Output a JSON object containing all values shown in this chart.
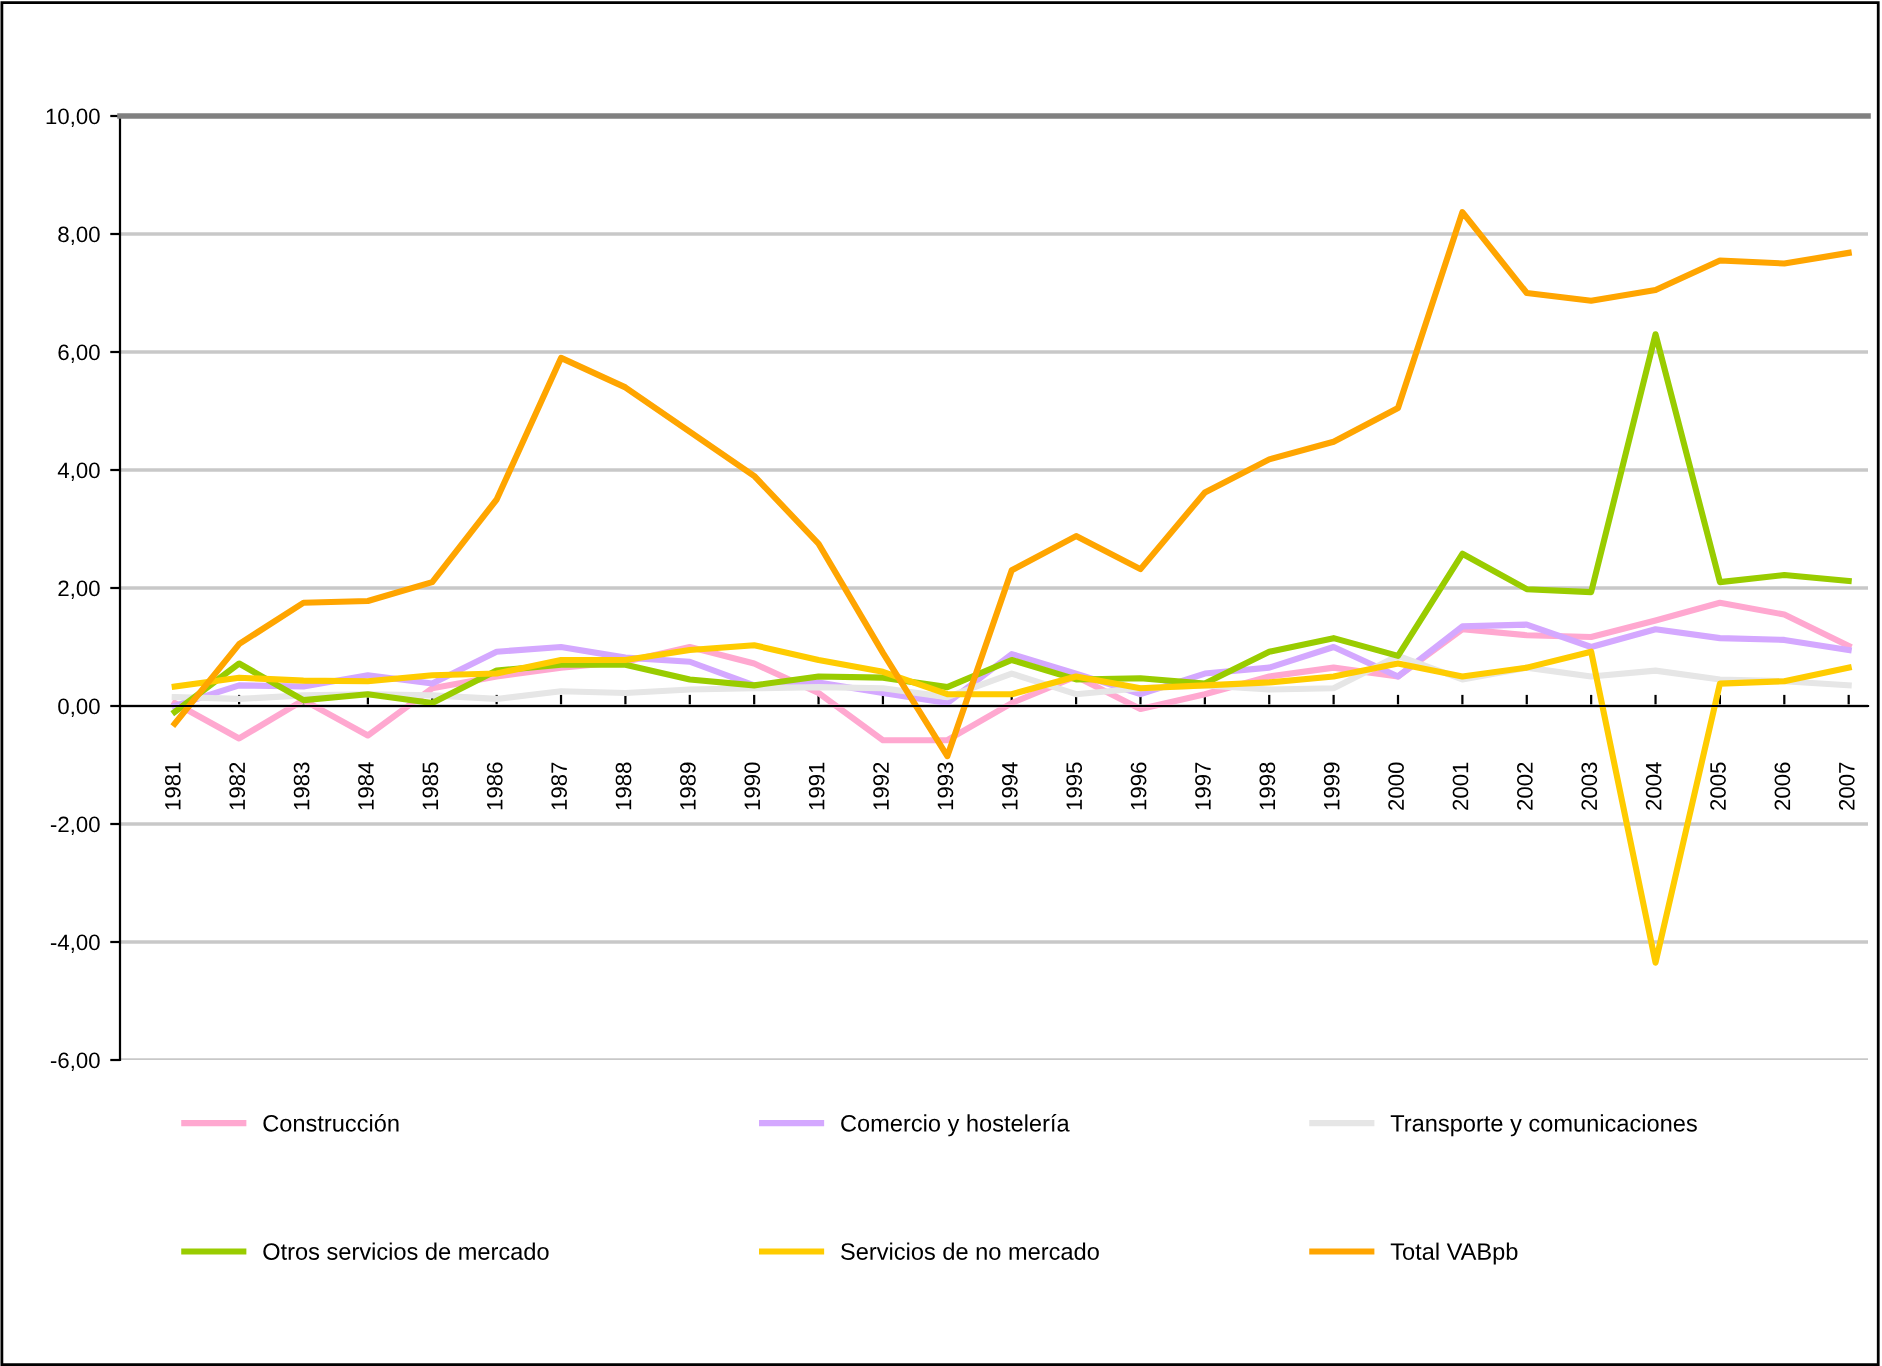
{
  "chart_data": {
    "type": "line",
    "categories": [
      "1981",
      "1982",
      "1983",
      "1984",
      "1985",
      "1986",
      "1987",
      "1988",
      "1989",
      "1990",
      "1991",
      "1992",
      "1993",
      "1994",
      "1995",
      "1996",
      "1997",
      "1998",
      "1999",
      "2000",
      "2001",
      "2002",
      "2003",
      "2004",
      "2005",
      "2006",
      "2007"
    ],
    "series": [
      {
        "name": "Construcción",
        "color": "#ffa8d0",
        "values": [
          0.05,
          -0.55,
          0.1,
          -0.5,
          0.3,
          0.5,
          0.65,
          0.75,
          1.0,
          0.72,
          0.22,
          -0.58,
          -0.58,
          0.05,
          0.5,
          -0.05,
          0.2,
          0.5,
          0.65,
          0.5,
          1.3,
          1.2,
          1.17,
          1.45,
          1.75,
          1.55,
          1.02
        ]
      },
      {
        "name": "Comercio y hostelería",
        "color": "#d4a8ff",
        "values": [
          0.0,
          0.35,
          0.33,
          0.52,
          0.38,
          0.92,
          1.0,
          0.82,
          0.75,
          0.35,
          0.4,
          0.22,
          0.05,
          0.88,
          0.55,
          0.2,
          0.55,
          0.65,
          1.0,
          0.5,
          1.35,
          1.38,
          1.0,
          1.3,
          1.15,
          1.12,
          0.95
        ]
      },
      {
        "name": "Transporte y comunicaciones",
        "color": "#e6e6e6",
        "values": [
          0.15,
          0.12,
          0.18,
          0.2,
          0.18,
          0.12,
          0.25,
          0.22,
          0.28,
          0.3,
          0.32,
          0.3,
          0.15,
          0.55,
          0.2,
          0.3,
          0.35,
          0.28,
          0.3,
          0.85,
          0.45,
          0.65,
          0.5,
          0.6,
          0.45,
          0.42,
          0.35
        ]
      },
      {
        "name": "Otros servicios de mercado",
        "color": "#99cc00",
        "values": [
          -0.1,
          0.72,
          0.1,
          0.2,
          0.05,
          0.6,
          0.7,
          0.7,
          0.45,
          0.35,
          0.5,
          0.48,
          0.32,
          0.78,
          0.45,
          0.47,
          0.38,
          0.92,
          1.15,
          0.85,
          2.58,
          1.98,
          1.93,
          6.3,
          2.1,
          2.22,
          2.12
        ]
      },
      {
        "name": "Servicios de no mercado",
        "color": "#ffcc00",
        "values": [
          0.33,
          0.48,
          0.43,
          0.42,
          0.52,
          0.55,
          0.78,
          0.78,
          0.95,
          1.03,
          0.78,
          0.58,
          0.2,
          0.2,
          0.5,
          0.3,
          0.35,
          0.4,
          0.5,
          0.72,
          0.5,
          0.65,
          0.92,
          -4.35,
          0.38,
          0.42,
          0.65
        ]
      },
      {
        "name": "Total VABpb",
        "color": "#ffa500",
        "values": [
          -0.3,
          1.05,
          1.75,
          1.78,
          2.1,
          3.5,
          5.9,
          5.4,
          4.65,
          3.9,
          2.75,
          0.9,
          -0.85,
          2.3,
          2.88,
          2.32,
          3.62,
          4.18,
          4.48,
          5.05,
          8.37,
          7.0,
          6.87,
          7.05,
          7.55,
          7.5,
          7.68
        ]
      }
    ],
    "ylim": [
      -6,
      10
    ],
    "yticks": [
      {
        "value": -6,
        "label": "-6,00"
      },
      {
        "value": -4,
        "label": "-4,00"
      },
      {
        "value": -2,
        "label": "-2,00"
      },
      {
        "value": 0,
        "label": "0,00"
      },
      {
        "value": 2,
        "label": "2,00"
      },
      {
        "value": 4,
        "label": "4,00"
      },
      {
        "value": 6,
        "label": "6,00"
      },
      {
        "value": 8,
        "label": "8,00"
      },
      {
        "value": 10,
        "label": "10,00"
      }
    ],
    "grid": "y",
    "legend": "bottom",
    "marker": "none",
    "line_style": "solid"
  }
}
